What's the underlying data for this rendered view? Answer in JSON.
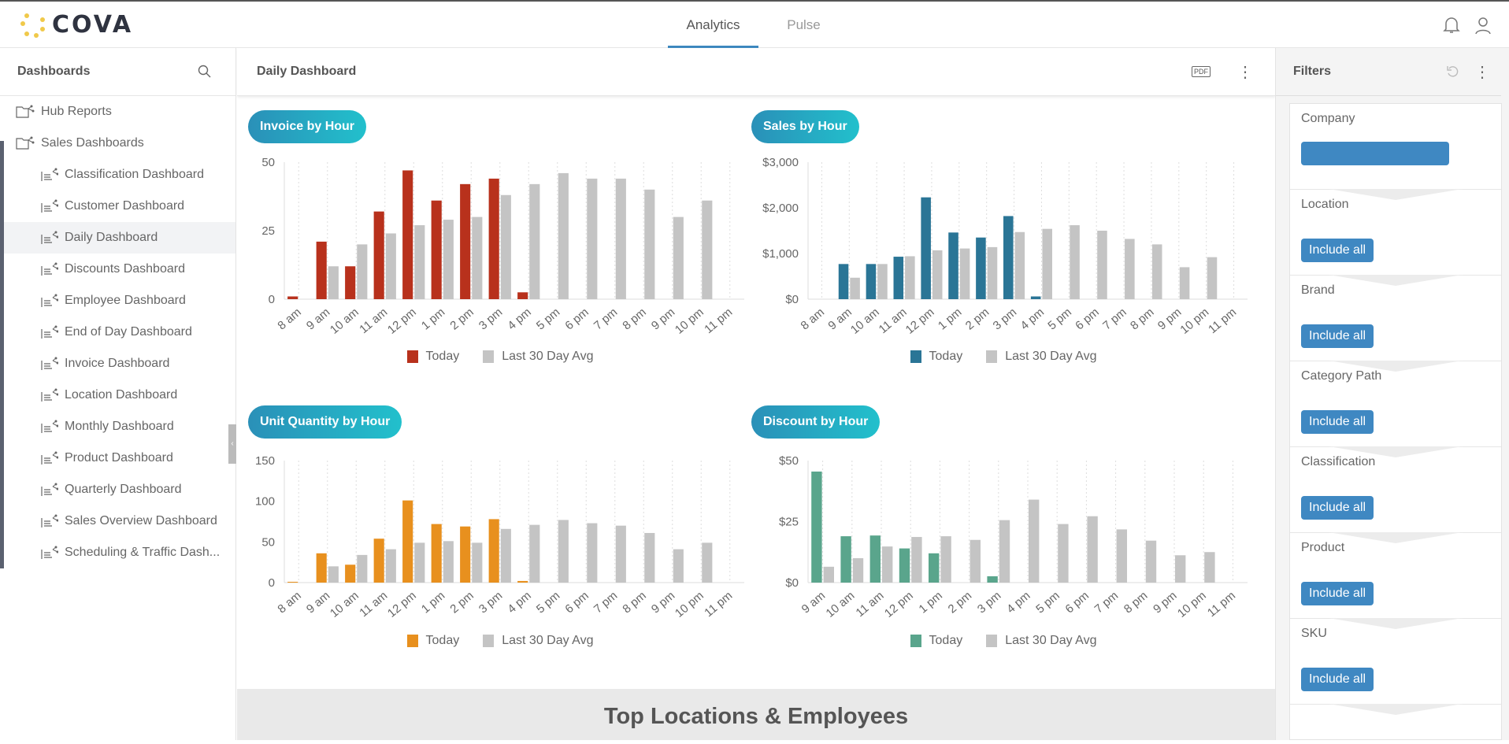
{
  "app": {
    "logo_text": "COVA",
    "tabs": [
      {
        "label": "Analytics",
        "active": true
      },
      {
        "label": "Pulse",
        "active": false
      }
    ],
    "accent": "#3a86bd"
  },
  "sidebar": {
    "title": "Dashboards",
    "folders": [
      "Hub Reports",
      "Sales Dashboards"
    ],
    "items": [
      "Classification Dashboard",
      "Customer Dashboard",
      "Daily Dashboard",
      "Discounts Dashboard",
      "Employee Dashboard",
      "End of Day Dashboard",
      "Invoice Dashboard",
      "Location Dashboard",
      "Monthly Dashboard",
      "Product Dashboard",
      "Quarterly Dashboard",
      "Sales Overview Dashboard",
      "Scheduling & Traffic Dash..."
    ],
    "selected": "Daily Dashboard"
  },
  "main": {
    "title": "Daily Dashboard",
    "pdf_label": "PDF",
    "section_title": "Top Locations & Employees"
  },
  "filters": {
    "title": "Filters",
    "items": [
      {
        "label": "Company",
        "value": ""
      },
      {
        "label": "Location",
        "value": "Include all"
      },
      {
        "label": "Brand",
        "value": "Include all"
      },
      {
        "label": "Category Path",
        "value": "Include all"
      },
      {
        "label": "Classification",
        "value": "Include all"
      },
      {
        "label": "Product",
        "value": "Include all"
      },
      {
        "label": "SKU",
        "value": "Include all"
      }
    ]
  },
  "chart_data": [
    {
      "type": "bar",
      "title": "Invoice by Hour",
      "categories": [
        "8 am",
        "9 am",
        "10 am",
        "11 am",
        "12 pm",
        "1 pm",
        "2 pm",
        "3 pm",
        "4 pm",
        "5 pm",
        "6 pm",
        "7 pm",
        "8 pm",
        "9 pm",
        "10 pm",
        "11 pm"
      ],
      "yticks": [
        "0",
        "25",
        "50"
      ],
      "ylim": [
        0,
        50
      ],
      "grid": "vertical-dotted",
      "legend": "bottom",
      "series": [
        {
          "name": "Today",
          "color": "#b8311c",
          "values": [
            1,
            21,
            12,
            32,
            47,
            36,
            42,
            44,
            2.5,
            0,
            0,
            0,
            0,
            0,
            0,
            0
          ]
        },
        {
          "name": "Last 30 Day Avg",
          "color": "#c4c4c4",
          "values": [
            0,
            12,
            20,
            24,
            27,
            29,
            30,
            38,
            42,
            46,
            44,
            44,
            40,
            30,
            36,
            0
          ]
        }
      ]
    },
    {
      "type": "bar",
      "title": "Sales by Hour",
      "categories": [
        "8 am",
        "9 am",
        "10 am",
        "11 am",
        "12 pm",
        "1 pm",
        "2 pm",
        "3 pm",
        "4 pm",
        "5 pm",
        "6 pm",
        "7 pm",
        "8 pm",
        "9 pm",
        "10 pm",
        "11 pm"
      ],
      "yticks": [
        "$0",
        "$1,000",
        "$2,000",
        "$3,000"
      ],
      "ylim": [
        0,
        3000
      ],
      "grid": "vertical-dotted",
      "legend": "bottom",
      "series": [
        {
          "name": "Today",
          "color": "#2a7596",
          "values": [
            0,
            770,
            770,
            930,
            2230,
            1460,
            1350,
            1820,
            60,
            0,
            0,
            0,
            0,
            0,
            0,
            0
          ]
        },
        {
          "name": "Last 30 Day Avg",
          "color": "#c4c4c4",
          "values": [
            0,
            470,
            770,
            940,
            1070,
            1110,
            1140,
            1470,
            1540,
            1620,
            1500,
            1320,
            1200,
            700,
            920,
            0
          ]
        }
      ]
    },
    {
      "type": "bar",
      "title": "Unit Quantity by Hour",
      "categories": [
        "8 am",
        "9 am",
        "10 am",
        "11 am",
        "12 pm",
        "1 pm",
        "2 pm",
        "3 pm",
        "4 pm",
        "5 pm",
        "6 pm",
        "7 pm",
        "8 pm",
        "9 pm",
        "10 pm",
        "11 pm"
      ],
      "yticks": [
        "0",
        "50",
        "100",
        "150"
      ],
      "ylim": [
        0,
        150
      ],
      "grid": "vertical-dotted",
      "legend": "bottom",
      "series": [
        {
          "name": "Today",
          "color": "#e8901e",
          "values": [
            1,
            36,
            22,
            54,
            101,
            72,
            69,
            78,
            2,
            0,
            0,
            0,
            0,
            0,
            0,
            0
          ]
        },
        {
          "name": "Last 30 Day Avg",
          "color": "#c4c4c4",
          "values": [
            0,
            20,
            34,
            41,
            49,
            51,
            49,
            66,
            71,
            77,
            73,
            70,
            61,
            41,
            49,
            0
          ]
        }
      ]
    },
    {
      "type": "bar",
      "title": "Discount by Hour",
      "categories": [
        "9 am",
        "10 am",
        "11 am",
        "12 pm",
        "1 pm",
        "2 pm",
        "3 pm",
        "4 pm",
        "5 pm",
        "6 pm",
        "7 pm",
        "8 pm",
        "9 pm",
        "10 pm",
        "11 pm"
      ],
      "yticks": [
        "$0",
        "$25",
        "$50"
      ],
      "ylim": [
        0,
        50
      ],
      "grid": "vertical-dotted",
      "legend": "bottom",
      "series": [
        {
          "name": "Today",
          "color": "#5aa58c",
          "values": [
            45.5,
            19,
            19.3,
            14,
            12,
            0,
            2.6,
            0,
            0,
            0,
            0,
            0,
            0,
            0,
            0
          ]
        },
        {
          "name": "Last 30 Day Avg",
          "color": "#c4c4c4",
          "values": [
            6.5,
            10,
            14.8,
            18.7,
            19,
            17.5,
            25.6,
            34,
            24,
            27.2,
            21.8,
            17.2,
            11.2,
            12.5,
            0
          ]
        }
      ]
    }
  ]
}
